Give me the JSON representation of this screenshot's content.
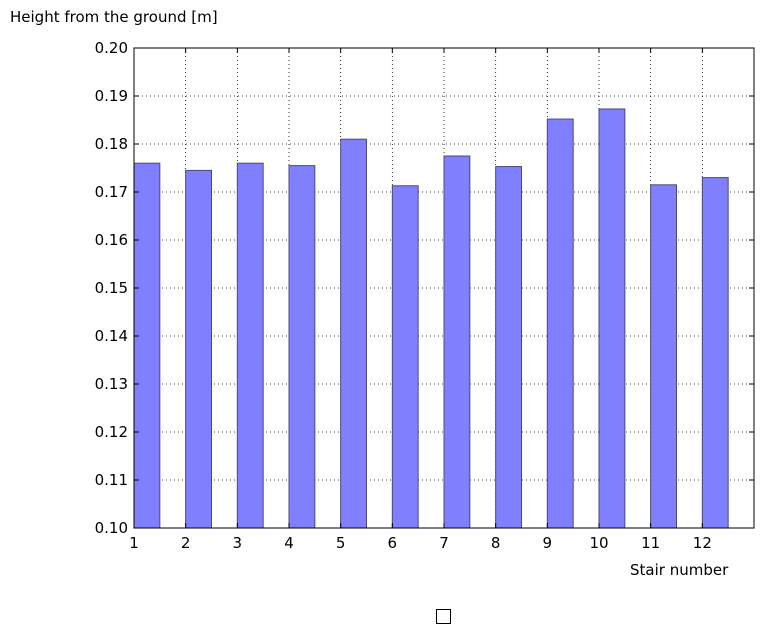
{
  "chart_data": {
    "type": "bar",
    "title": "",
    "xlabel": "Stair number",
    "ylabel": "Height from the ground [m]",
    "categories": [
      "1",
      "2",
      "3",
      "4",
      "5",
      "6",
      "7",
      "8",
      "9",
      "10",
      "11",
      "12"
    ],
    "values": [
      0.176,
      0.1745,
      0.176,
      0.1755,
      0.181,
      0.1713,
      0.1775,
      0.1753,
      0.1852,
      0.1873,
      0.1715,
      0.173
    ],
    "x": [
      1,
      2,
      3,
      4,
      5,
      6,
      7,
      8,
      9,
      10,
      11,
      12
    ],
    "xlim": [
      1,
      13
    ],
    "ylim": [
      0.1,
      0.2
    ],
    "yticks": [
      "0.10",
      "0.11",
      "0.12",
      "0.13",
      "0.14",
      "0.15",
      "0.16",
      "0.17",
      "0.18",
      "0.19",
      "0.20"
    ],
    "xticks": [
      "1",
      "2",
      "3",
      "4",
      "5",
      "6",
      "7",
      "8",
      "9",
      "10",
      "11",
      "12"
    ],
    "grid": true,
    "bar_color": "#8080ff",
    "bar_edge_color": "#4a4a7a"
  }
}
